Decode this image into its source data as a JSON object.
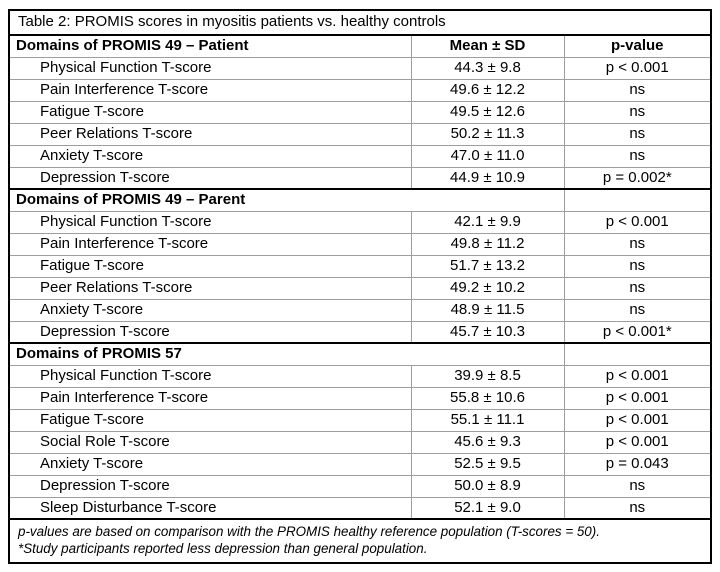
{
  "table": {
    "title": "Table 2: PROMIS scores in myositis patients vs. healthy controls",
    "col_headers": {
      "mean_sd": "Mean ± SD",
      "p_value": "p-value"
    },
    "sections": [
      {
        "header": "Domains of PROMIS 49 – Patient",
        "rows": [
          {
            "label": "Physical Function T-score",
            "mean_sd": "44.3 ± 9.8",
            "p_value": "p < 0.001"
          },
          {
            "label": "Pain Interference T-score",
            "mean_sd": "49.6 ± 12.2",
            "p_value": "ns"
          },
          {
            "label": "Fatigue T-score",
            "mean_sd": "49.5 ± 12.6",
            "p_value": "ns"
          },
          {
            "label": "Peer Relations T-score",
            "mean_sd": "50.2 ± 11.3",
            "p_value": "ns"
          },
          {
            "label": "Anxiety T-score",
            "mean_sd": "47.0 ± 11.0",
            "p_value": "ns"
          },
          {
            "label": "Depression T-score",
            "mean_sd": "44.9 ± 10.9",
            "p_value": "p = 0.002*"
          }
        ]
      },
      {
        "header": "Domains of PROMIS 49 – Parent",
        "rows": [
          {
            "label": "Physical Function T-score",
            "mean_sd": "42.1 ± 9.9",
            "p_value": "p < 0.001"
          },
          {
            "label": "Pain Interference T-score",
            "mean_sd": "49.8 ± 11.2",
            "p_value": "ns"
          },
          {
            "label": "Fatigue T-score",
            "mean_sd": "51.7 ± 13.2",
            "p_value": "ns"
          },
          {
            "label": "Peer Relations T-score",
            "mean_sd": "49.2 ± 10.2",
            "p_value": "ns"
          },
          {
            "label": "Anxiety T-score",
            "mean_sd": "48.9 ± 11.5",
            "p_value": "ns"
          },
          {
            "label": "Depression T-score",
            "mean_sd": "45.7 ± 10.3",
            "p_value": "p < 0.001*"
          }
        ]
      },
      {
        "header": "Domains of PROMIS 57",
        "rows": [
          {
            "label": "Physical Function T-score",
            "mean_sd": "39.9 ± 8.5",
            "p_value": "p < 0.001"
          },
          {
            "label": "Pain Interference T-score",
            "mean_sd": "55.8 ± 10.6",
            "p_value": "p < 0.001"
          },
          {
            "label": "Fatigue T-score",
            "mean_sd": "55.1 ± 11.1",
            "p_value": "p < 0.001"
          },
          {
            "label": "Social Role T-score",
            "mean_sd": "45.6 ± 9.3",
            "p_value": "p < 0.001"
          },
          {
            "label": "Anxiety T-score",
            "mean_sd": "52.5 ± 9.5",
            "p_value": "p = 0.043"
          },
          {
            "label": "Depression T-score",
            "mean_sd": "50.0 ± 8.9",
            "p_value": "ns"
          },
          {
            "label": "Sleep Disturbance T-score",
            "mean_sd": "52.1 ± 9.0",
            "p_value": "ns"
          }
        ]
      }
    ],
    "footnotes": [
      "p-values are based on comparison with the PROMIS healthy reference population (T-scores = 50).",
      "*Study participants reported less depression than general population."
    ],
    "colors": {
      "border_outer": "#000000",
      "border_inner": "#9e9e9e",
      "text": "#000000",
      "background": "#ffffff"
    }
  }
}
